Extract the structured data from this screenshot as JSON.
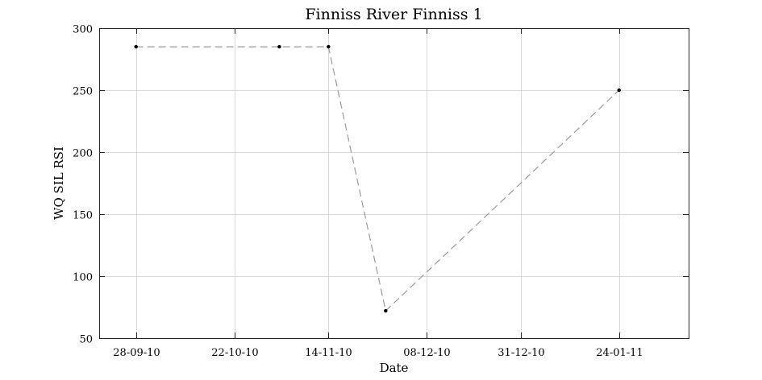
{
  "chart_data": {
    "type": "line",
    "title": "Finniss River Finniss 1",
    "xlabel": "Date",
    "ylabel": "WQ SIL RSI",
    "x_type": "date",
    "xlim": [
      "2010-09-19",
      "2011-02-10"
    ],
    "ylim": [
      50,
      300
    ],
    "grid": true,
    "x_ticks": [
      {
        "date": "2010-09-28",
        "label": "28-09-10"
      },
      {
        "date": "2010-10-22",
        "label": "22-10-10"
      },
      {
        "date": "2010-11-14",
        "label": "14-11-10"
      },
      {
        "date": "2010-12-08",
        "label": "08-12-10"
      },
      {
        "date": "2010-12-31",
        "label": "31-12-10"
      },
      {
        "date": "2011-01-24",
        "label": "24-01-11"
      }
    ],
    "y_ticks": [
      50,
      100,
      150,
      200,
      250,
      300
    ],
    "series": [
      {
        "line_color": "#9a9a9a",
        "line_style": "dashed",
        "marker_color": "#000000",
        "points": [
          {
            "x": "2010-09-28",
            "y": 285
          },
          {
            "x": "2010-11-02",
            "y": 285
          },
          {
            "x": "2010-11-14",
            "y": 285
          },
          {
            "x": "2010-11-28",
            "y": 72
          },
          {
            "x": "2011-01-24",
            "y": 250
          }
        ]
      }
    ]
  }
}
